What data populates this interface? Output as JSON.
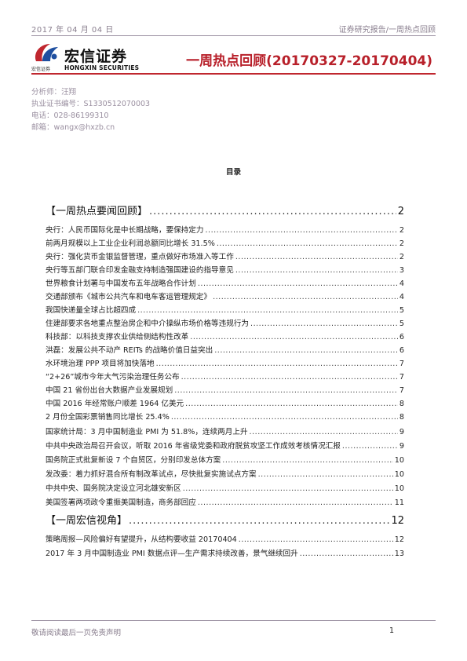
{
  "header": {
    "date": "2017 年 04 月 04 日",
    "category": "证券研究报告/一周热点回顾"
  },
  "brand": {
    "name_cn": "宏信证券",
    "name_en": "HONGXIN SECURITIES",
    "small_cn": "宏信证券",
    "accent_color": "#c0272f",
    "logo_blue": "#1f4fa0"
  },
  "title": "一周热点回顾(20170327-20170404)",
  "analyst": {
    "name": "分析师：汪翔",
    "cert": "执业证书编号：S1330512070003",
    "phone": "电话：028-86199310",
    "email": "邮箱：wangx@hxzb.cn"
  },
  "toc": {
    "heading": "目录",
    "sections": [
      {
        "title": "【一周热点要闻回顾】",
        "page": "2",
        "items": [
          {
            "text": "央行：人民币国际化是中长期战略，要保持定力",
            "page": "2"
          },
          {
            "text": "前两月规模以上工业企业利润总额同比增长 31.5%",
            "page": "2"
          },
          {
            "text": "央行：强化货币金银监督管理，重点做好市场准入等工作",
            "page": "2"
          },
          {
            "text": "央行等五部门联合印发金融支持制造强国建设的指导意见",
            "page": "3"
          },
          {
            "text": "世界粮食计划署与中国发布五年战略合作计划",
            "page": "4"
          },
          {
            "text": "交通部颁布《城市公共汽车和电车客运管理规定》",
            "page": "4"
          },
          {
            "text": "我国快递量全球占比超四成",
            "page": "5"
          },
          {
            "text": "住建部要求各地重点整治房企和中介操纵市场价格等违规行为",
            "page": "5"
          },
          {
            "text": "科技部：以科技支撑农业供给侧结构性改革",
            "page": "6"
          },
          {
            "text": "洪磊：发展公共不动产 REITs 的战略价值日益突出",
            "page": "6"
          },
          {
            "text": "水环境治理 PPP 项目将加快落地",
            "page": "7"
          },
          {
            "text": "“2+26”城市今年大气污染治理任务公布",
            "page": "7"
          },
          {
            "text": "中国 21 省份出台大数据产业发展规划",
            "page": "7"
          },
          {
            "text": "中国 2016 年经常账户顺差 1964 亿美元",
            "page": "8"
          },
          {
            "text": "2 月份全国彩票销售同比增长 25.4%",
            "page": "8"
          },
          {
            "text": "国家统计局：3 月中国制造业 PMI 为 51.8%，连续两月上升",
            "page": "9"
          },
          {
            "text": "中共中央政治局召开会议，听取 2016 年省级党委和政府脱贫攻坚工作成效考核情况汇报",
            "page": "9"
          },
          {
            "text": "国务院正式批复新设 7 个自贸区，分别印发总体方案",
            "page": "10"
          },
          {
            "text": "发改委：着力抓好混合所有制改革试点，尽快批复实施试点方案",
            "page": "10"
          },
          {
            "text": "中共中央、国务院决定设立河北雄安新区",
            "page": "10"
          },
          {
            "text": "美国签署两项政令重振美国制造，商务部回应",
            "page": "11"
          }
        ]
      },
      {
        "title": "【一周宏信视角】",
        "page": "12",
        "items": [
          {
            "text": "策略周报—风险偏好有望提升，从结构要收益 20170404",
            "page": "12"
          },
          {
            "text": "2017 年 3 月中国制造业 PMI 数据点评—生产需求持续改善，景气继续回升",
            "page": "13"
          }
        ]
      }
    ]
  },
  "footer": {
    "disclaimer": "敬请阅读最后一页免责声明",
    "page_number": "1"
  }
}
